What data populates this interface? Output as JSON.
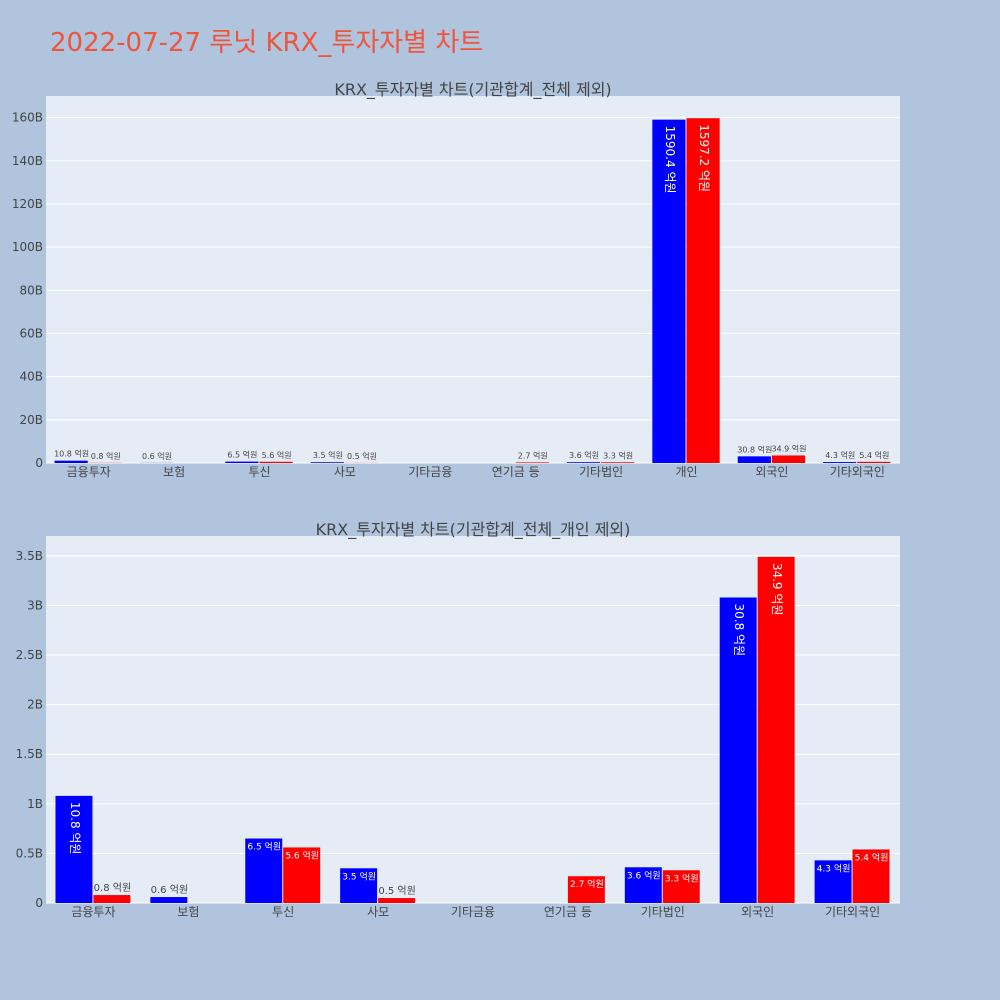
{
  "page": {
    "title": "2022-07-27 루닛 KRX_투자자별 차트"
  },
  "colors": {
    "series_a": "#0000ff",
    "series_b": "#ff0000",
    "plot_bg": "#e5ecf6",
    "page_bg": "#b0c4de",
    "title": "#ef553b"
  },
  "chart_data": [
    {
      "type": "bar",
      "title": "KRX_투자자별 차트(기관합계_전체 제외)",
      "categories": [
        "금융투자",
        "보험",
        "투신",
        "사모",
        "기타금융",
        "연기금 등",
        "기타법인",
        "개인",
        "외국인",
        "기타외국인"
      ],
      "ylim": [
        0,
        170000000000
      ],
      "yticks": [
        0,
        20000000000,
        40000000000,
        60000000000,
        80000000000,
        100000000000,
        120000000000,
        140000000000,
        160000000000
      ],
      "ytick_labels": [
        "0",
        "20B",
        "40B",
        "60B",
        "80B",
        "100B",
        "120B",
        "140B",
        "160B"
      ],
      "grid": true,
      "series": [
        {
          "values": [
            1080000000,
            60000000,
            650000000,
            350000000,
            0,
            0,
            360000000,
            159040000000,
            3080000000,
            430000000
          ],
          "labels": [
            "10.8 억원",
            "0.6 억원",
            "6.5 억원",
            "3.5 억원",
            "",
            "",
            "3.6 억원",
            "1590.4 억원",
            "30.8 억원",
            "4.3 억원"
          ]
        },
        {
          "values": [
            80000000,
            0,
            560000000,
            50000000,
            0,
            270000000,
            330000000,
            159720000000,
            3490000000,
            540000000
          ],
          "labels": [
            "0.8 억원",
            "",
            "5.6 억원",
            "0.5 억원",
            "",
            "2.7 억원",
            "3.3 억원",
            "1597.2 억원",
            "34.9 억원",
            "5.4 억원"
          ]
        }
      ]
    },
    {
      "type": "bar",
      "title": "KRX_투자자별 차트(기관합계_전체_개인 제외)",
      "categories": [
        "금융투자",
        "보험",
        "투신",
        "사모",
        "기타금융",
        "연기금 등",
        "기타법인",
        "외국인",
        "기타외국인"
      ],
      "ylim": [
        0,
        3700000000
      ],
      "yticks": [
        0,
        500000000,
        1000000000,
        1500000000,
        2000000000,
        2500000000,
        3000000000,
        3500000000
      ],
      "ytick_labels": [
        "0",
        "0.5B",
        "1B",
        "1.5B",
        "2B",
        "2.5B",
        "3B",
        "3.5B"
      ],
      "grid": true,
      "series": [
        {
          "values": [
            1080000000,
            60000000,
            650000000,
            350000000,
            0,
            0,
            360000000,
            3080000000,
            430000000
          ],
          "labels": [
            "10.8 억원",
            "0.6 억원",
            "6.5 억원",
            "3.5 억원",
            "",
            "",
            "3.6 억원",
            "30.8 억원",
            "4.3 억원"
          ]
        },
        {
          "values": [
            80000000,
            0,
            560000000,
            50000000,
            0,
            270000000,
            330000000,
            3490000000,
            540000000
          ],
          "labels": [
            "0.8 억원",
            "",
            "5.6 억원",
            "0.5 억원",
            "",
            "2.7 억원",
            "3.3 억원",
            "34.9 억원",
            "5.4 억원"
          ]
        }
      ]
    }
  ]
}
